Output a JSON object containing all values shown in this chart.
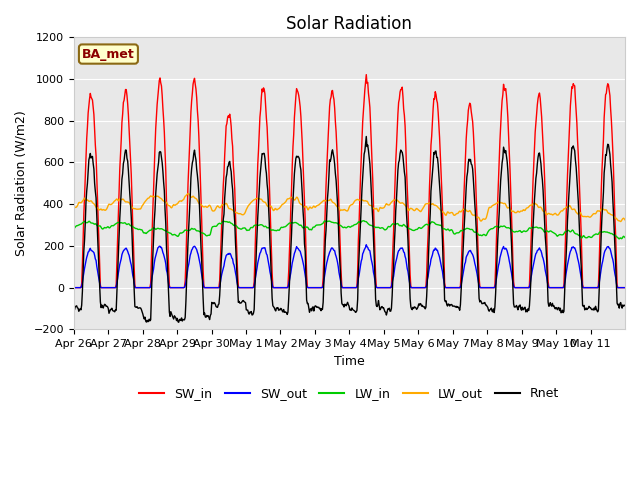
{
  "title": "Solar Radiation",
  "ylabel": "Solar Radiation (W/m2)",
  "xlabel": "Time",
  "ylim": [
    -200,
    1200
  ],
  "yticks": [
    -200,
    0,
    200,
    400,
    600,
    800,
    1000,
    1200
  ],
  "colors": {
    "SW_in": "#ff0000",
    "SW_out": "#0000ff",
    "LW_in": "#00cc00",
    "LW_out": "#ffaa00",
    "Rnet": "#000000"
  },
  "annotation_text": "BA_met",
  "plot_bg_color": "#e8e8e8",
  "fig_bg_color": "#ffffff",
  "SW_in_peaks": [
    940,
    950,
    990,
    995,
    830,
    960,
    950,
    945,
    1000,
    960,
    930,
    875,
    965,
    920,
    970,
    980
  ],
  "date_labels": [
    "Apr 26",
    "Apr 27",
    "Apr 28",
    "Apr 29",
    "Apr 30",
    "May 1",
    "May 2",
    "May 3",
    "May 4",
    "May 5",
    "May 6",
    "May 7",
    "May 8",
    "May 9",
    "May 10",
    "May 11"
  ],
  "title_fontsize": 12,
  "axis_fontsize": 9,
  "tick_fontsize": 8
}
